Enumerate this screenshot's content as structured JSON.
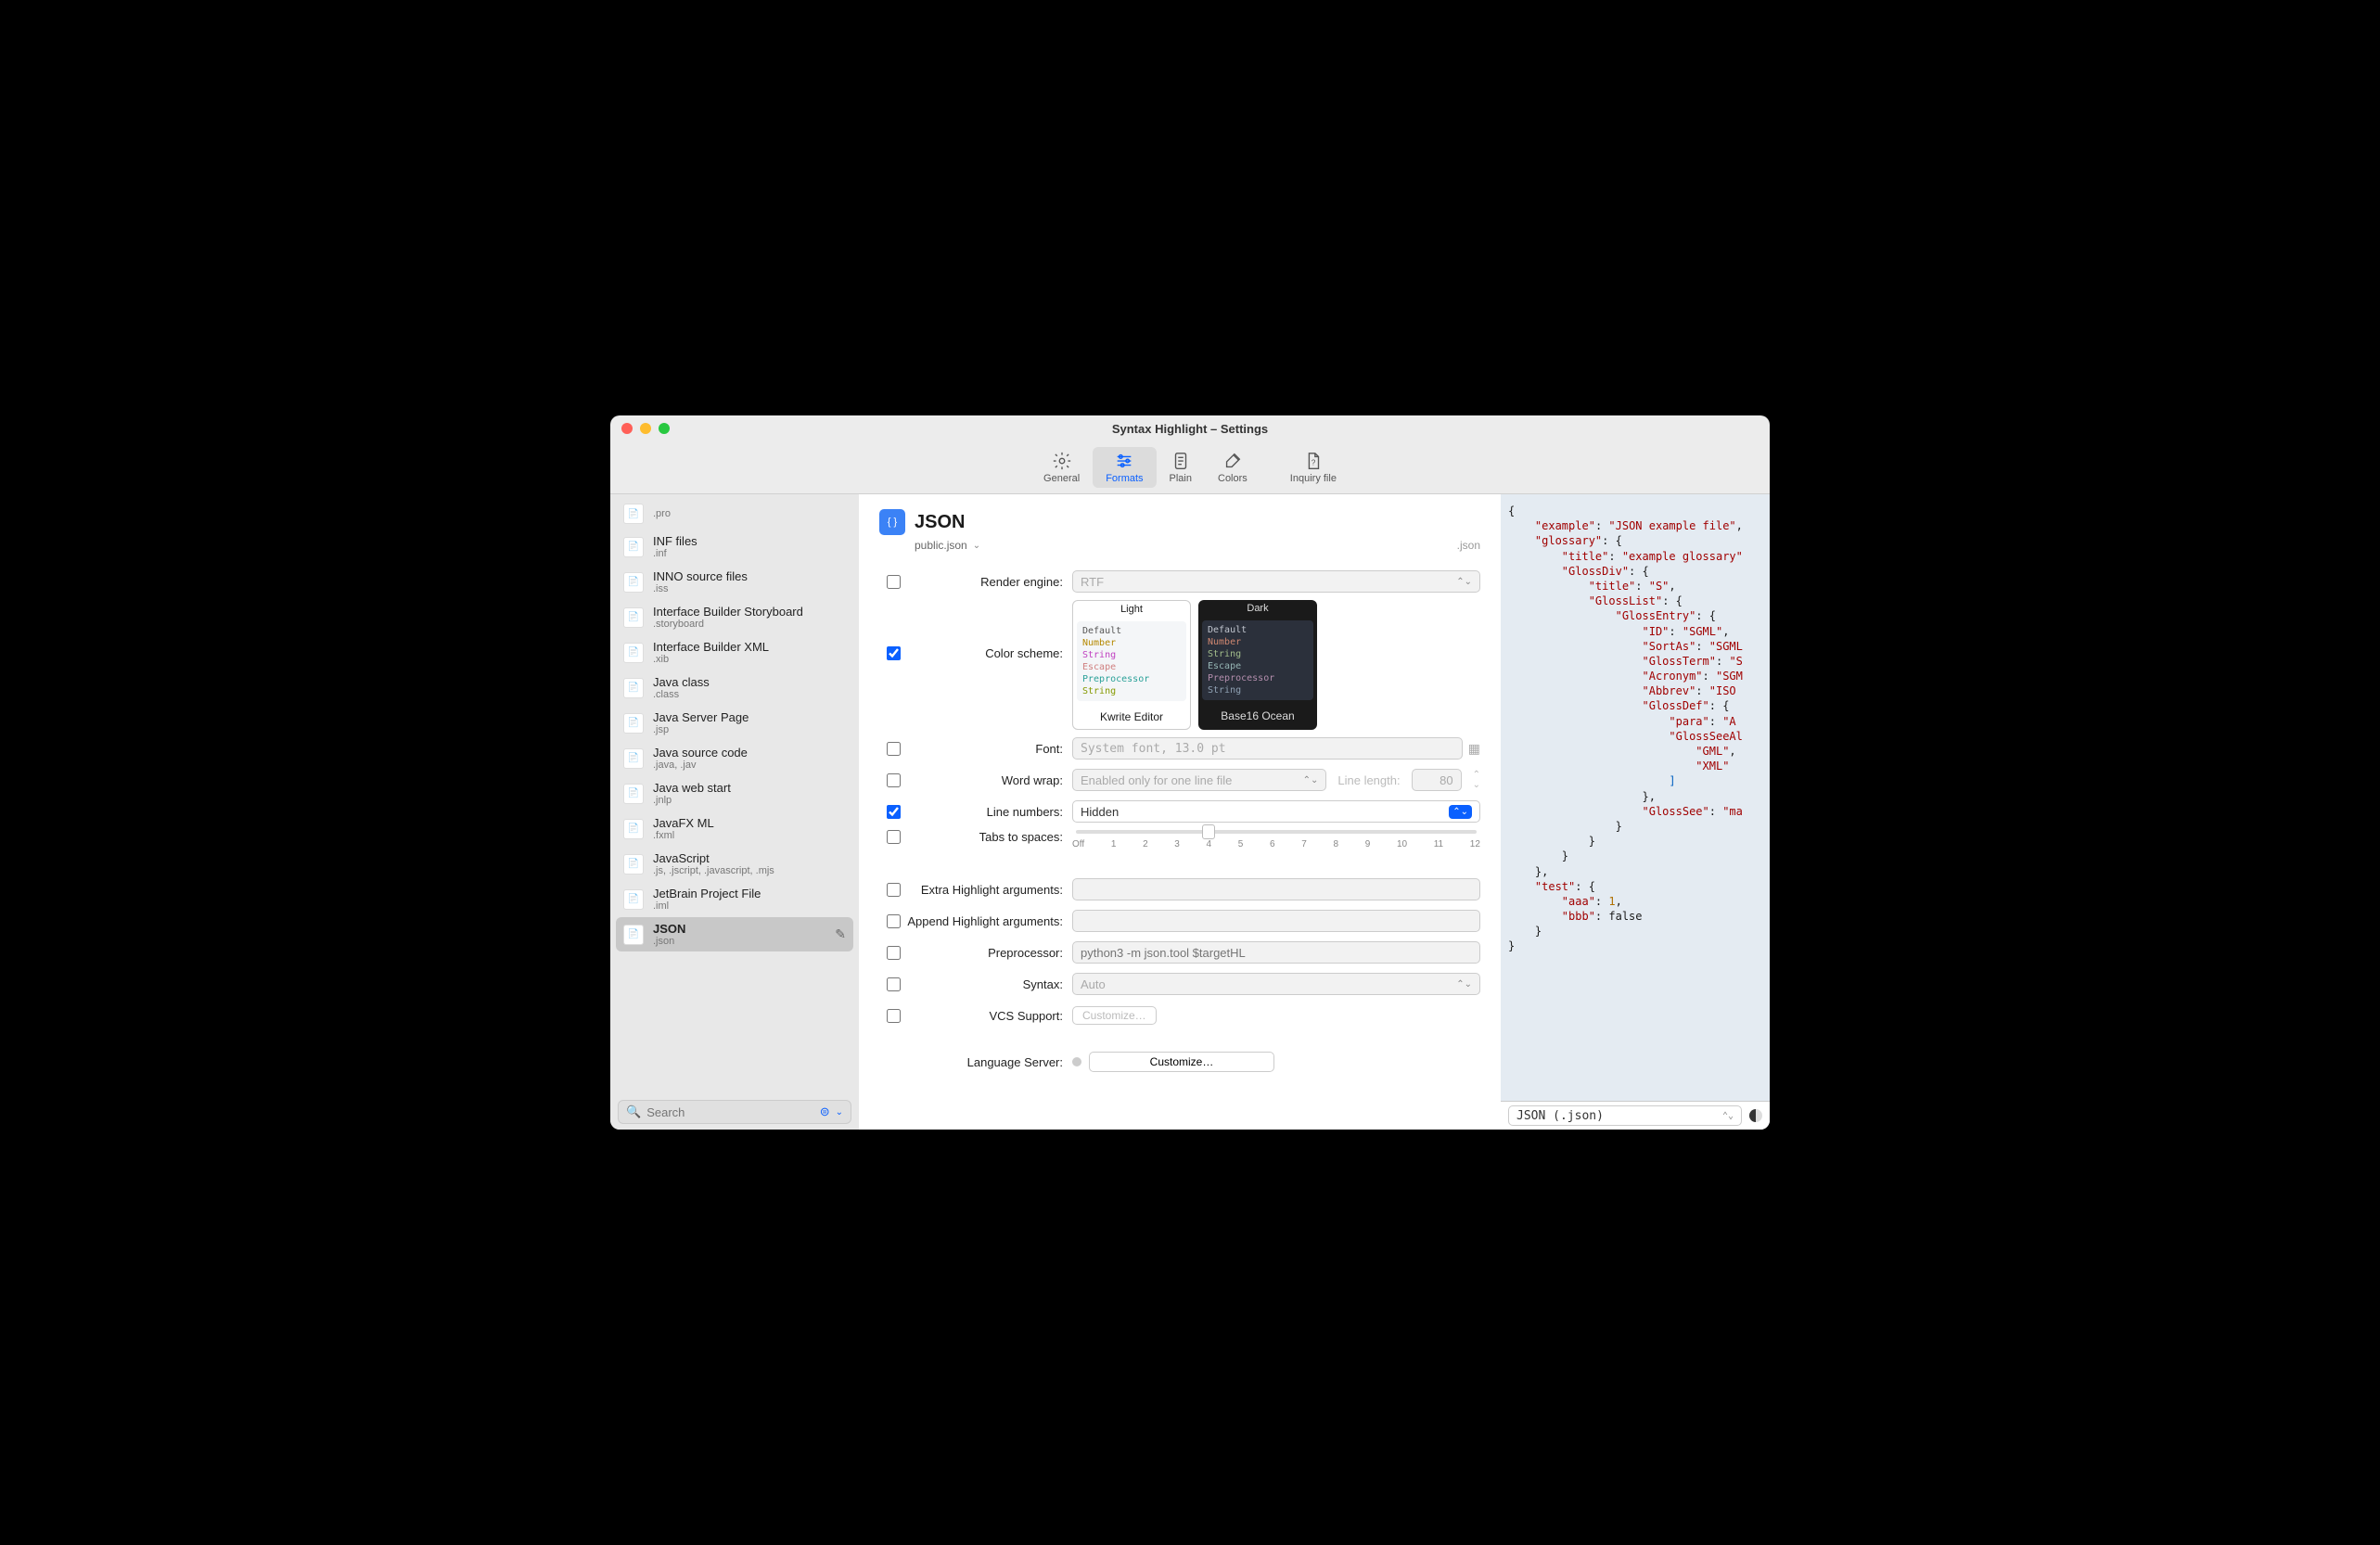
{
  "window": {
    "title": "Syntax Highlight – Settings"
  },
  "toolbar": {
    "items": [
      {
        "label": "General"
      },
      {
        "label": "Formats"
      },
      {
        "label": "Plain"
      },
      {
        "label": "Colors"
      },
      {
        "label": "Inquiry file"
      }
    ],
    "active_index": 1
  },
  "sidebar": {
    "items": [
      {
        "name": "",
        "ext": ".pro"
      },
      {
        "name": "INF files",
        "ext": ".inf"
      },
      {
        "name": "INNO source files",
        "ext": ".iss"
      },
      {
        "name": "Interface Builder Storyboard",
        "ext": ".storyboard"
      },
      {
        "name": "Interface Builder XML",
        "ext": ".xib"
      },
      {
        "name": "Java class",
        "ext": ".class"
      },
      {
        "name": "Java Server Page",
        "ext": ".jsp"
      },
      {
        "name": "Java source code",
        "ext": ".java, .jav"
      },
      {
        "name": "Java web start",
        "ext": ".jnlp"
      },
      {
        "name": "JavaFX ML",
        "ext": ".fxml"
      },
      {
        "name": "JavaScript",
        "ext": ".js, .jscript, .javascript, .mjs"
      },
      {
        "name": "JetBrain Project File",
        "ext": ".iml"
      },
      {
        "name": "JSON",
        "ext": ".json"
      }
    ],
    "selected_index": 12,
    "search_placeholder": "Search"
  },
  "main": {
    "title": "JSON",
    "subtitle": "public.json",
    "file_ext": ".json",
    "labels": {
      "render_engine": "Render engine:",
      "color_scheme": "Color scheme:",
      "font": "Font:",
      "word_wrap": "Word wrap:",
      "line_length": "Line length:",
      "line_numbers": "Line numbers:",
      "tabs_to_spaces": "Tabs to spaces:",
      "extra_args": "Extra Highlight arguments:",
      "append_args": "Append Highlight arguments:",
      "preprocessor": "Preprocessor:",
      "syntax": "Syntax:",
      "vcs_support": "VCS Support:",
      "language_server": "Language Server:"
    },
    "render_engine": {
      "value": "RTF",
      "enabled": false
    },
    "color_scheme": {
      "enabled": true,
      "light": {
        "caption": "Light",
        "name": "Kwrite Editor",
        "lines": [
          {
            "t": "Default",
            "c": "#555"
          },
          {
            "t": "Number",
            "c": "#b58900"
          },
          {
            "t": "String",
            "c": "#c040c0"
          },
          {
            "t": "Escape",
            "c": "#d08080"
          },
          {
            "t": "Preprocessor",
            "c": "#2aa198"
          },
          {
            "t": "String",
            "c": "#859900"
          }
        ]
      },
      "dark": {
        "caption": "Dark",
        "name": "Base16 Ocean",
        "lines": [
          {
            "t": "Default",
            "c": "#c0c5ce"
          },
          {
            "t": "Number",
            "c": "#d08770"
          },
          {
            "t": "String",
            "c": "#a3be8c"
          },
          {
            "t": "Escape",
            "c": "#96b5b4"
          },
          {
            "t": "Preprocessor",
            "c": "#b48ead"
          },
          {
            "t": "String",
            "c": "#8fa1b3"
          }
        ]
      }
    },
    "font": {
      "value": "System font, 13.0 pt",
      "enabled": false
    },
    "word_wrap": {
      "value": "Enabled only for one line file",
      "enabled": false,
      "line_length": "80"
    },
    "line_numbers": {
      "value": "Hidden",
      "enabled": true
    },
    "tabs": {
      "enabled": false,
      "ticks": [
        "Off",
        "1",
        "2",
        "3",
        "4",
        "5",
        "6",
        "7",
        "8",
        "9",
        "10",
        "11",
        "12"
      ],
      "thumb_pct": 33
    },
    "extra_args": {
      "value": "",
      "enabled": false
    },
    "append_args": {
      "value": "",
      "enabled": false
    },
    "preprocessor": {
      "placeholder": "python3 -m json.tool $targetHL",
      "enabled": false
    },
    "syntax": {
      "value": "Auto",
      "enabled": false
    },
    "vcs": {
      "button": "Customize…",
      "enabled": false
    },
    "language_server": {
      "button": "Customize…"
    }
  },
  "preview": {
    "language_label": "JSON (.json)",
    "code_html": "<span>{</span>\n    <span class='k'>\"example\"</span>: <span class='s'>\"JSON example file\"</span>,\n    <span class='k'>\"glossary\"</span>: {\n        <span class='k'>\"title\"</span>: <span class='s'>\"example glossary\"</span>\n        <span class='k'>\"GlossDiv\"</span>: {\n            <span class='k'>\"title\"</span>: <span class='s'>\"S\"</span>,\n            <span class='k'>\"GlossList\"</span>: {\n                <span class='k'>\"GlossEntry\"</span>: {\n                    <span class='k'>\"ID\"</span>: <span class='s'>\"SGML\"</span>,\n                    <span class='k'>\"SortAs\"</span>: <span class='s'>\"SGML</span>\n                    <span class='k'>\"GlossTerm\"</span>: <span class='s'>\"S</span>\n                    <span class='k'>\"Acronym\"</span>: <span class='s'>\"SGM</span>\n                    <span class='k'>\"Abbrev\"</span>: <span class='s'>\"ISO </span>\n                    <span class='k'>\"GlossDef\"</span>: {\n                        <span class='k'>\"para\"</span>: <span class='s'>\"A </span>\n                        <span class='k'>\"GlossSeeAl</span>\n                            <span class='s'>\"GML\"</span>,\n                            <span class='s'>\"XML\"</span>\n                        <span style='color:#0060c0'>]</span>\n                    },\n                    <span class='k'>\"GlossSee\"</span>: <span class='s'>\"ma</span>\n                }\n            }\n        }\n    },\n    <span class='k'>\"test\"</span>: {\n        <span class='k'>\"aaa\"</span>: <span class='n'>1</span>,\n        <span class='k'>\"bbb\"</span>: false\n    }\n}"
  }
}
